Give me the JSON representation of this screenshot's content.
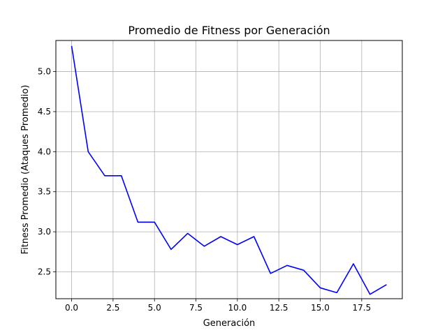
{
  "chart_data": {
    "type": "line",
    "title": "Promedio de Fitness por Generación",
    "xlabel": "Generación",
    "ylabel": "Fitness Promedio (Ataques Promedio)",
    "xlim": [
      -0.95,
      19.95
    ],
    "ylim": [
      2.1645,
      5.3885
    ],
    "x_ticks": [
      0,
      2.5,
      5,
      7.5,
      10,
      12.5,
      15,
      17.5
    ],
    "x_tick_labels": [
      "0.0",
      "2.5",
      "5.0",
      "7.5",
      "10.0",
      "12.5",
      "15.0",
      "17.5"
    ],
    "y_ticks": [
      2.5,
      3.0,
      3.5,
      4.0,
      4.5,
      5.0
    ],
    "y_tick_labels": [
      "2.5",
      "3.0",
      "3.5",
      "4.0",
      "4.5",
      "5.0"
    ],
    "grid": true,
    "series": [
      {
        "color": "#0000ff",
        "x": [
          0,
          1,
          2,
          3,
          4,
          5,
          6,
          7,
          8,
          9,
          10,
          11,
          12,
          13,
          14,
          15,
          16,
          17,
          18,
          19
        ],
        "values": [
          5.32,
          4.0,
          3.7,
          3.7,
          3.12,
          3.12,
          2.78,
          2.98,
          2.82,
          2.94,
          2.84,
          2.94,
          2.48,
          2.58,
          2.52,
          2.3,
          2.24,
          2.6,
          2.22,
          2.34
        ]
      }
    ]
  }
}
